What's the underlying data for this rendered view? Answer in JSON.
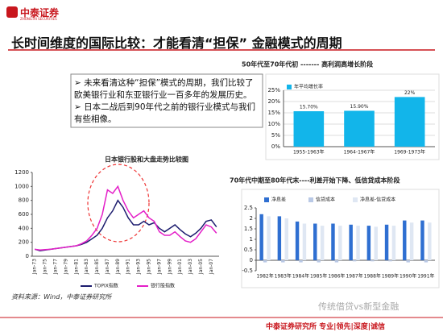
{
  "header": {
    "logo": "中泰证券",
    "logo_en": "ZHONGTAI SECURITIES",
    "title": "长时间维度的国际比较：才能看清“担保” 金融模式的周期"
  },
  "bullets": [
    "未来看清这种“担保”模式的周期，我们比较了欧美银行业和东亚银行业一百多年的发展历史。",
    "日本二战后到90年代之前的银行业模式与我们有些相像。"
  ],
  "chart_data": [
    {
      "type": "bar",
      "title": "50年代至70年代初 ------- 高利润高增长阶段",
      "categories": [
        "1955-1963年",
        "1964-1967年",
        "1969-1973年"
      ],
      "series": [
        {
          "name": "年平均增长率",
          "color": "#12b5ea",
          "values": [
            15.7,
            15.9,
            22
          ],
          "value_labels": [
            "15.70%",
            "15.90%",
            "22%"
          ]
        }
      ],
      "ylim": [
        0,
        25
      ],
      "yticks": [
        {
          "value": 0,
          "label": "0%"
        },
        {
          "value": 5,
          "label": "5%"
        },
        {
          "value": 10,
          "label": "10%"
        },
        {
          "value": 15,
          "label": "15%"
        },
        {
          "value": 20,
          "label": "20%"
        },
        {
          "value": 25,
          "label": "25%"
        }
      ],
      "grid": true,
      "legend": "top-left"
    },
    {
      "type": "bar",
      "title": "70年代中期至80年代末----利差开始下降、低信贷成本阶段",
      "categories": [
        "1982年",
        "1983年",
        "1984年",
        "1985年",
        "1986年",
        "1987年",
        "1988年",
        "1989年",
        "1990年",
        "1991年"
      ],
      "series": [
        {
          "name": "净息差",
          "color": "#2f6fd1",
          "values": [
            2.2,
            2.1,
            1.85,
            1.75,
            1.75,
            1.7,
            1.65,
            1.7,
            1.9,
            1.9
          ]
        },
        {
          "name": "信贷成本",
          "color": "#b9c9e6",
          "values": [
            -0.1,
            -0.1,
            -0.1,
            -0.1,
            -0.1,
            -0.05,
            -0.05,
            -0.05,
            -0.1,
            -0.1
          ]
        },
        {
          "name": "净息差-信贷成本",
          "color": "#dfe7f3",
          "values": [
            2.1,
            2.0,
            1.75,
            1.65,
            1.65,
            1.65,
            1.6,
            1.65,
            1.8,
            1.8
          ]
        }
      ],
      "ylim": [
        -0.5,
        2.5
      ],
      "yticks": [
        -0.5,
        0,
        0.5,
        1,
        1.5,
        2,
        2.5
      ],
      "grid": false,
      "legend": "top"
    },
    {
      "type": "line",
      "title": "日本银行股和大盘走势比较图",
      "categories": [
        "Jan-73",
        null,
        "Jan-75",
        null,
        "Jan-77",
        null,
        "Jan-79",
        null,
        "Jan-81",
        null,
        "Jan-83",
        null,
        "Jan-85",
        null,
        "Jan-87",
        null,
        "Jan-89",
        null,
        "Jan-91",
        null,
        "Jan-93",
        null,
        "Jan-95",
        null,
        "Jan-97",
        null,
        "Jan-99",
        null,
        "Jan-01",
        null,
        "Jan-03",
        null,
        "Jan-05",
        null,
        "Jan-07",
        null
      ],
      "series": [
        {
          "name": "TOPIX指数",
          "color": "#1c1c6e",
          "values": [
            100,
            80,
            90,
            100,
            110,
            120,
            130,
            140,
            150,
            170,
            200,
            250,
            300,
            400,
            550,
            650,
            800,
            700,
            550,
            450,
            450,
            500,
            450,
            480,
            400,
            350,
            400,
            450,
            380,
            320,
            280,
            330,
            400,
            500,
            520,
            420
          ]
        },
        {
          "name": "银行股指数",
          "color": "#e41fc8",
          "values": [
            100,
            90,
            95,
            100,
            110,
            120,
            130,
            140,
            150,
            180,
            220,
            300,
            400,
            600,
            950,
            900,
            1000,
            800,
            650,
            550,
            600,
            650,
            550,
            500,
            350,
            300,
            300,
            350,
            280,
            220,
            200,
            250,
            350,
            450,
            420,
            330
          ]
        }
      ],
      "ylim": [
        0,
        1200
      ],
      "yticks": [
        0,
        200,
        400,
        600,
        800,
        1000,
        1200
      ],
      "grid": false,
      "legend": "bottom"
    }
  ],
  "source": "资料来源：Wind，中泰证券研究所",
  "watermark": "传统借贷vs新型金融",
  "footer": {
    "org": "中泰证券研究所",
    "motto": "专业|领先|深度|诚信"
  }
}
